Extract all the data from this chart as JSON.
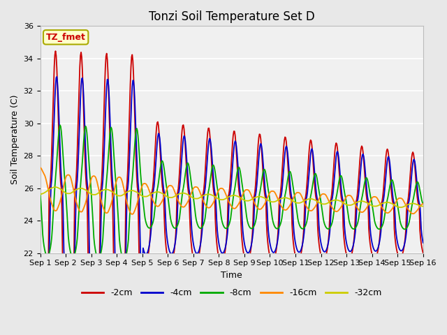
{
  "title": "Tonzi Soil Temperature Set D",
  "xlabel": "Time",
  "ylabel": "Soil Temperature (C)",
  "ylim": [
    22,
    36
  ],
  "xlim": [
    0,
    15
  ],
  "xtick_labels": [
    "Sep 1",
    "Sep 2",
    "Sep 3",
    "Sep 4",
    "Sep 5",
    "Sep 6",
    "Sep 7",
    "Sep 8",
    "Sep 9",
    "Sep 10",
    "Sep 11",
    "Sep 12",
    "Sep 13",
    "Sep 14",
    "Sep 15",
    "Sep 16"
  ],
  "legend_labels": [
    "-2cm",
    "-4cm",
    "-8cm",
    "-16cm",
    "-32cm"
  ],
  "line_colors": [
    "#cc0000",
    "#0000cc",
    "#00aa00",
    "#ff8800",
    "#cccc00"
  ],
  "annotation_text": "TZ_fmet",
  "annotation_bg": "#ffffcc",
  "annotation_border": "#aaaa00",
  "bg_color": "#e8e8e8",
  "plot_bg_color": "#f0f0f0",
  "title_fontsize": 12,
  "axis_fontsize": 9,
  "tick_fontsize": 8,
  "legend_fontsize": 9,
  "yticks": [
    22,
    24,
    26,
    28,
    30,
    32,
    34,
    36
  ]
}
